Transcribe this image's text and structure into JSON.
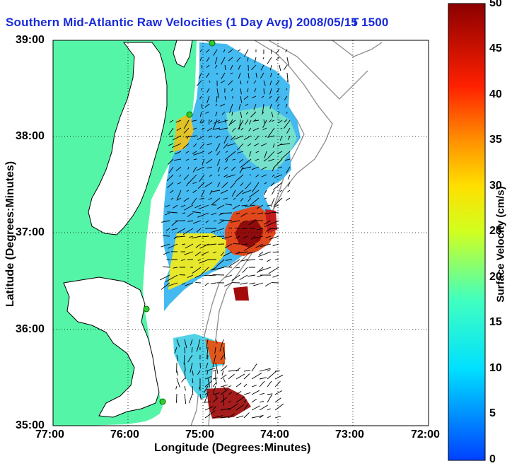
{
  "title": "Southern Mid-Atlantic Raw Velocities (1 Day Avg) 2008/05/15 1500",
  "title_tail": "T",
  "x_axis": {
    "label": "Longitude (Degrees:Minutes)",
    "ticks": [
      "77:00",
      "76:00",
      "75:00",
      "74:00",
      "73:00",
      "72:00"
    ]
  },
  "y_axis": {
    "label": "Latitude (Degrees:Minutes)",
    "ticks": [
      "39:00",
      "38:00",
      "37:00",
      "36:00",
      "35:00"
    ]
  },
  "colorbar": {
    "label": "Surface Velocity (cm/s)",
    "ticks": [
      "50",
      "45",
      "40",
      "35",
      "30",
      "25",
      "20",
      "15",
      "10",
      "5",
      "0"
    ]
  },
  "colors": {
    "land": "#55f5a8",
    "title": "#1a2bd9",
    "vector": "#000000",
    "bathymetry": "#8c8c8c",
    "station": "#33cc33"
  }
}
